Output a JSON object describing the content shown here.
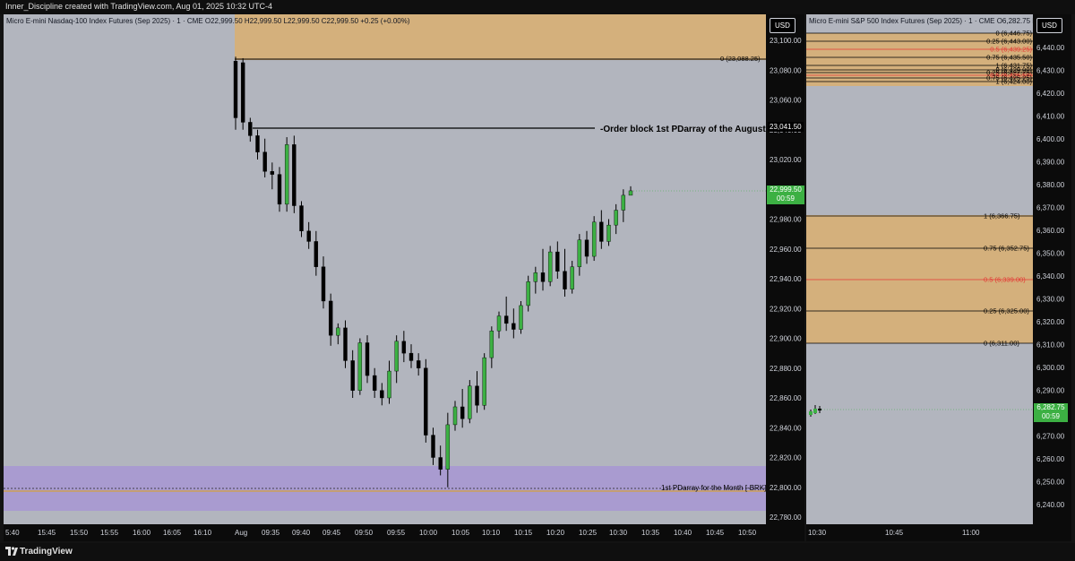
{
  "header": {
    "title": "Inner_Discipline created with TradingView.com, Aug 01, 2025 10:32 UTC-4"
  },
  "footer": {
    "brand": "TradingView"
  },
  "colors": {
    "bullish": "#3cb043",
    "bearish": "#000000",
    "premium_zone": "#d4b07c",
    "pd_zone": "#a99bd0",
    "fib_mid": "#e53935"
  },
  "left_chart": {
    "symbol_line": "Micro E-mini Nasdaq-100 Index Futures (Sep 2025) · 1 · CME  O22,999.50  H22,999.50  L22,999.50  C22,999.50  +0.25 (+0.00%)",
    "currency": "USD",
    "price_scale": [
      "23,100.00",
      "23,080.00",
      "23,060.00",
      "23,040.00",
      "23,020.00",
      "23,000.00",
      "22,980.00",
      "22,960.00",
      "22,940.00",
      "22,920.00",
      "22,900.00",
      "22,880.00",
      "22,860.00",
      "22,840.00",
      "22,820.00",
      "22,800.00",
      "22,780.00"
    ],
    "time_scale": [
      "5:40",
      "15:45",
      "15:50",
      "15:55",
      "16:00",
      "16:05",
      "16:10",
      "Aug",
      "09:35",
      "09:40",
      "09:45",
      "09:50",
      "09:55",
      "10:00",
      "10:05",
      "10:10",
      "10:15",
      "10:20",
      "10:25",
      "10:30",
      "10:35",
      "10:40",
      "10:45",
      "10:50"
    ],
    "zone_label": "0 (23,088.25)",
    "order_block_label": "-Order block 1st PDarray of the August -",
    "order_block_price": "23,041.50",
    "pd_label": "1st PDarray for the Month [-BRK]",
    "last_price": "22,999.50",
    "countdown": "00:59"
  },
  "right_chart": {
    "symbol_line": "Micro E-mini S&P 500 Index Futures (Sep 2025) · 1 · CME  O6,282.75  H...",
    "currency": "USD",
    "price_scale": [
      "6,440.00",
      "6,430.00",
      "6,420.00",
      "6,410.00",
      "6,400.00",
      "6,390.00",
      "6,380.00",
      "6,370.00",
      "6,360.00",
      "6,350.00",
      "6,340.00",
      "6,330.00",
      "6,320.00",
      "6,310.00",
      "6,300.00",
      "6,290.00",
      "6,280.00",
      "6,270.00",
      "6,260.00",
      "6,250.00",
      "6,240.00"
    ],
    "time_scale": [
      "10:30",
      "10:45",
      "11:00"
    ],
    "upper_fib": [
      "0 (6,446.75)",
      "0.25 (6,443.00)",
      "0.5 (6,439.25)",
      "0.75 (6,435.50)",
      "1 (6,431.75)",
      "0 (6,429.00)",
      "0.25 (6,427.75)",
      "0.5 (6,426.50)",
      "0.75 (6,425.25)",
      "1 (6,424.00)"
    ],
    "lower_fib": [
      "1 (6,366.75)",
      "0.75 (6,352.75)",
      "0.5 (6,339.00)",
      "0.25 (6,325.00)",
      "0 (6,311.00)"
    ],
    "last_price": "6,282.75",
    "countdown": "00:59"
  },
  "chart_data": {
    "type": "candlestick",
    "title": "Micro E-mini Nasdaq-100 Index Futures (Sep 2025) · 1 · CME",
    "ylim": [
      22775,
      23110
    ],
    "candles": [
      [
        23086,
        23089,
        23040,
        23048
      ],
      [
        23085,
        23088,
        23040,
        23045
      ],
      [
        23045,
        23048,
        23032,
        23036
      ],
      [
        23036,
        23040,
        23020,
        23025
      ],
      [
        23025,
        23034,
        23008,
        23012
      ],
      [
        23012,
        23018,
        23000,
        23010
      ],
      [
        23010,
        23015,
        22985,
        22990
      ],
      [
        22990,
        23035,
        22985,
        23030
      ],
      [
        23030,
        23036,
        22984,
        22989
      ],
      [
        22989,
        22992,
        22968,
        22972
      ],
      [
        22972,
        22978,
        22960,
        22965
      ],
      [
        22965,
        22972,
        22942,
        22948
      ],
      [
        22948,
        22955,
        22920,
        22925
      ],
      [
        22925,
        22930,
        22895,
        22902
      ],
      [
        22902,
        22910,
        22896,
        22907
      ],
      [
        22907,
        22912,
        22880,
        22885
      ],
      [
        22885,
        22892,
        22860,
        22865
      ],
      [
        22865,
        22900,
        22862,
        22897
      ],
      [
        22897,
        22902,
        22870,
        22875
      ],
      [
        22875,
        22880,
        22860,
        22865
      ],
      [
        22865,
        22870,
        22855,
        22860
      ],
      [
        22860,
        22885,
        22856,
        22878
      ],
      [
        22878,
        22902,
        22870,
        22898
      ],
      [
        22898,
        22905,
        22884,
        22890
      ],
      [
        22890,
        22896,
        22880,
        22885
      ],
      [
        22885,
        22890,
        22875,
        22880
      ],
      [
        22880,
        22886,
        22830,
        22835
      ],
      [
        22835,
        22840,
        22815,
        22820
      ],
      [
        22820,
        22828,
        22808,
        22812
      ],
      [
        22812,
        22850,
        22800,
        22842
      ],
      [
        22842,
        22858,
        22838,
        22854
      ],
      [
        22854,
        22866,
        22840,
        22846
      ],
      [
        22846,
        22872,
        22843,
        22868
      ],
      [
        22868,
        22878,
        22850,
        22855
      ],
      [
        22855,
        22890,
        22852,
        22887
      ],
      [
        22887,
        22908,
        22880,
        22905
      ],
      [
        22905,
        22918,
        22900,
        22915
      ],
      [
        22915,
        22928,
        22905,
        22910
      ],
      [
        22910,
        22920,
        22900,
        22906
      ],
      [
        22906,
        22925,
        22903,
        22922
      ],
      [
        22922,
        22942,
        22918,
        22938
      ],
      [
        22938,
        22948,
        22930,
        22944
      ],
      [
        22944,
        22960,
        22932,
        22938
      ],
      [
        22938,
        22962,
        22935,
        22958
      ],
      [
        22958,
        22965,
        22940,
        22945
      ],
      [
        22945,
        22960,
        22928,
        22933
      ],
      [
        22933,
        22952,
        22930,
        22948
      ],
      [
        22948,
        22970,
        22942,
        22966
      ],
      [
        22966,
        22972,
        22950,
        22955
      ],
      [
        22955,
        22982,
        22952,
        22978
      ],
      [
        22978,
        22986,
        22960,
        22965
      ],
      [
        22965,
        22980,
        22962,
        22976
      ],
      [
        22976,
        22990,
        22970,
        22986
      ],
      [
        22986,
        23000,
        22978,
        22996
      ],
      [
        22996,
        23002,
        22996,
        22999
      ]
    ]
  }
}
